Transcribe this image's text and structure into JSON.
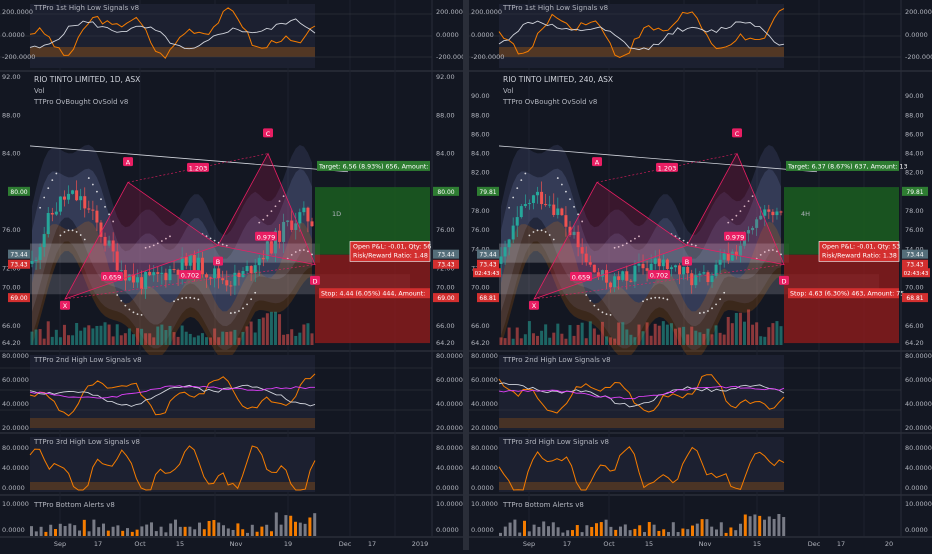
{
  "charts": [
    {
      "id": "left",
      "main_title": "RIO TINTO LIMITED, 1D, ASX",
      "vol_label": "Vol",
      "ind_label": "TTPro OvBought OvSold v8",
      "top_title": "TTPro 1st High Low Signals v8",
      "pane2_title": "TTPro 2nd High Low Signals v8",
      "pane3_title": "TTPro 3rd High Low Signals v8",
      "pane4_title": "TTPro Bottom Alerts v8",
      "timeframe_label": "1D",
      "top_ticks": [
        "200.0000",
        "0.0000",
        "-200.0000"
      ],
      "main_ticks": [
        "92.00",
        "88.00",
        "84.00",
        "76.00",
        "72.00",
        "70.00",
        "66.00",
        "64.20"
      ],
      "pane2_ticks": [
        "80.0000",
        "60.0000",
        "40.0000",
        "20.0000"
      ],
      "pane3_ticks": [
        "80.0000",
        "40.0000",
        "0.0000"
      ],
      "pane4_ticks": [
        "10.0000",
        "0.0000"
      ],
      "price_tags": {
        "p80": "80.00",
        "p7344": "73.44",
        "p7343": "73.43",
        "p69": "69.00"
      },
      "right_tags": {
        "target": "80.00",
        "p7344": "73.44",
        "p7343": "73.43",
        "stop": "69.00"
      },
      "left_extra_tag": "",
      "right_extra_tag": "",
      "xaxis": [
        "Sep",
        "17",
        "Oct",
        "15",
        "Nov",
        "19",
        "Dec",
        "17",
        "2019"
      ],
      "pattern_labels": [
        "X",
        "A",
        "B",
        "C",
        "D"
      ],
      "ratios": [
        "1.203",
        "0.659",
        "0.702",
        "0.979"
      ],
      "target_text": "Target: 6.56 (8.93%) 656, Amount: ",
      "stop_text": "Stop: 4.44 (6.05%) 444, Amount:",
      "pnl_line1": "Open P&L: -0.01, Qty: 56",
      "pnl_line2": "Risk/Reward Ratio: 1.48"
    },
    {
      "id": "right",
      "main_title": "RIO TINTO LIMITED, 240, ASX",
      "vol_label": "Vol",
      "ind_label": "TTPro OvBought OvSold v8",
      "top_title": "TTPro 1st High Low Signals v8",
      "pane2_title": "TTPro 2nd High Low Signals v8",
      "pane3_title": "TTPro 3rd High Low Signals v8",
      "pane4_title": "TTPro Bottom Alerts v8",
      "timeframe_label": "4H",
      "top_ticks": [
        "200.0000",
        "0.0000",
        "-200.0000"
      ],
      "main_ticks": [
        "90.00",
        "88.00",
        "86.00",
        "84.00",
        "82.00",
        "78.00",
        "76.00",
        "74.00",
        "72.00",
        "70.00",
        "66.00",
        "64.20"
      ],
      "pane2_ticks": [
        "80.0000",
        "60.0000",
        "40.0000",
        "20.0000"
      ],
      "pane3_ticks": [
        "80.0000",
        "40.0000",
        "0.0000"
      ],
      "pane4_ticks": [
        "10.0000",
        "0.0000"
      ],
      "price_tags": {
        "p80": "79.81",
        "p7344": "73.44",
        "p7343": "73.43",
        "p69": "68.81"
      },
      "right_tags": {
        "target": "79.81",
        "p7344": "73.44",
        "p7343": "73.43",
        "stop": "68.81"
      },
      "left_extra_tag": "02:43:43",
      "right_extra_tag": "02:43:43",
      "xaxis": [
        "Sep",
        "17",
        "Oct",
        "15",
        "Nov",
        "15",
        "Dec",
        "17",
        "20"
      ],
      "pattern_labels": [
        "X",
        "A",
        "B",
        "C",
        "D"
      ],
      "ratios": [
        "1.203",
        "0.659",
        "0.702",
        "0.979"
      ],
      "target_text": "Target: 6.37 (8.67%) 637, Amount: 13",
      "stop_text": "Stop: 4.63 (6.30%) 463, Amount: 75",
      "pnl_line1": "Open P&L: -0.01, Qty: 53",
      "pnl_line2": "Risk/Reward Ratio: 1.38"
    }
  ],
  "colors": {
    "background": "#131722",
    "up": "#26a69a",
    "down": "#ef5350",
    "target_box": "#1b5e20",
    "stop_box": "#8e1c1c",
    "pattern": "#e91e63",
    "orange": "#f57c00",
    "white_line": "#d1d4dc"
  }
}
